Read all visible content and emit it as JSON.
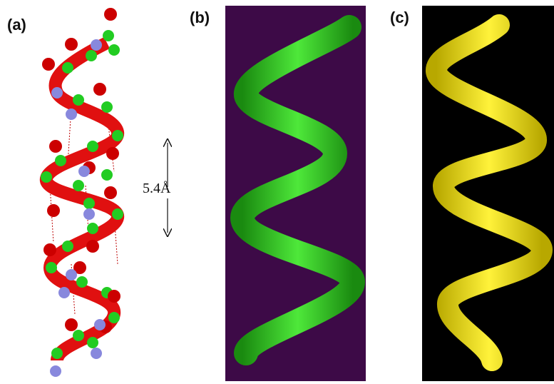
{
  "panels": [
    {
      "label": "(a)"
    },
    {
      "label": "(b)"
    },
    {
      "label": "(c)"
    }
  ],
  "annotation": "5.4Å"
}
